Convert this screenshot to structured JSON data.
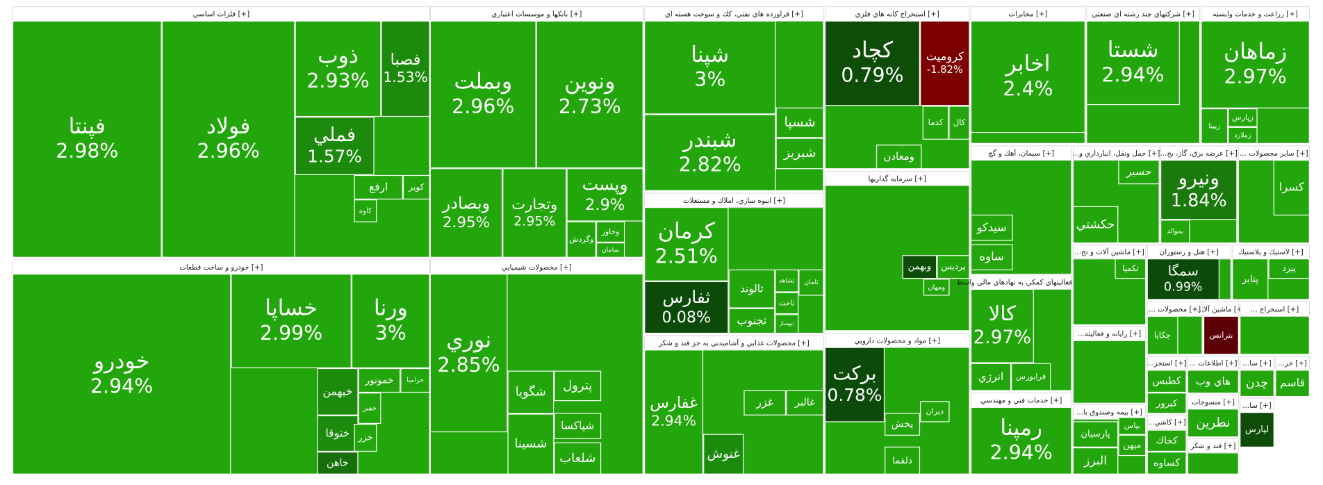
{
  "chart_data": {
    "type": "treemap",
    "default_color": "#22a60b",
    "sectors": [
      {
        "title": "فلزات اساسي [+]",
        "tiles": [
          {
            "name": "فپنتا",
            "change": "2.98%"
          },
          {
            "name": "فولاد",
            "change": "2.96%"
          },
          {
            "name": "ذوب",
            "change": "2.93%"
          },
          {
            "name": "فصبا",
            "change": "1.53%",
            "color": "#1c8a0c"
          },
          {
            "name": "فملي",
            "change": "1.57%",
            "color": "#1c8a0c"
          },
          {
            "name": "ارفع"
          },
          {
            "name": "كوير"
          },
          {
            "name": "كاوه"
          }
        ]
      },
      {
        "title": "خودرو و ساخت قطعات [+]",
        "tiles": [
          {
            "name": "خودرو",
            "change": "2.94%"
          },
          {
            "name": "خساپا",
            "change": "2.99%"
          },
          {
            "name": "ورنا",
            "change": "3%"
          },
          {
            "name": "خبهمن",
            "color": "#1c8a0c"
          },
          {
            "name": "خموتور"
          },
          {
            "name": "خزاميا"
          },
          {
            "name": "خفنر"
          },
          {
            "name": "ختوقا",
            "color": "#1c8a0c"
          },
          {
            "name": "خاهن",
            "color": "#176f0c"
          },
          {
            "name": "خزر"
          }
        ]
      },
      {
        "title": "بانكها و موسسات اعتباري [+]",
        "tiles": [
          {
            "name": "وبملت",
            "change": "2.96%"
          },
          {
            "name": "ونوين",
            "change": "2.73%"
          },
          {
            "name": "وبصادر",
            "change": "2.95%"
          },
          {
            "name": "وتجارت",
            "change": "2.95%"
          },
          {
            "name": "وپست",
            "change": "2.9%"
          },
          {
            "name": "وگردش"
          },
          {
            "name": "وخاور"
          },
          {
            "name": "سامان"
          }
        ]
      },
      {
        "title": "محصولات شيميايي [+]",
        "tiles": [
          {
            "name": "نوري",
            "change": "2.85%"
          },
          {
            "name": "شگويا"
          },
          {
            "name": "پترول"
          },
          {
            "name": "شپاكسا"
          },
          {
            "name": "شسينا"
          },
          {
            "name": "شلعاب"
          }
        ]
      },
      {
        "title": "فراورده هاي نفتي، كك و سوخت هسته اي [+]",
        "tiles": [
          {
            "name": "شپنا",
            "change": "3%"
          },
          {
            "name": "شبندر",
            "change": "2.82%"
          },
          {
            "name": "شسپا"
          },
          {
            "name": "شبريز"
          }
        ]
      },
      {
        "title": "انبوه سازي، املاك و مستغلات [+]",
        "tiles": [
          {
            "name": "كرمان",
            "change": "2.51%"
          },
          {
            "name": "ثفارس",
            "change": "0.08%",
            "color": "#0b4a08"
          },
          {
            "name": "ثالوند"
          },
          {
            "name": "ثشاهد"
          },
          {
            "name": "ثامان"
          },
          {
            "name": "ثاخت"
          },
          {
            "name": "ثجنوب"
          },
          {
            "name": "ثبهساز"
          }
        ]
      },
      {
        "title": "محصولات غذايي و آشاميدني به جز قند و شكر [+]",
        "tiles": [
          {
            "name": "غفارس",
            "change": "2.94%"
          },
          {
            "name": "غنوش",
            "color": "#1c8a0c"
          },
          {
            "name": "غزر"
          },
          {
            "name": "غالبر"
          }
        ]
      },
      {
        "title": "استخراج كانه هاي فلزي [+]",
        "tiles": [
          {
            "name": "كچاد",
            "change": "0.79%",
            "color": "#0d4d08"
          },
          {
            "name": "كروميت",
            "change": "-1.82%",
            "color": "#7c0000"
          },
          {
            "name": "كدما"
          },
          {
            "name": "كال"
          },
          {
            "name": "ومعادن"
          }
        ]
      },
      {
        "title": "سرمايه گذاريها [+]",
        "tiles": [
          {
            "name": "وبهمن",
            "color": "#0d4d08"
          },
          {
            "name": "پرديس"
          },
          {
            "name": "ومهان"
          }
        ]
      },
      {
        "title": "مواد و محصولات دارويي [+]",
        "tiles": [
          {
            "name": "بركت",
            "change": "0.78%",
            "color": "#0b4a08"
          },
          {
            "name": "پخش"
          },
          {
            "name": "ديران"
          },
          {
            "name": "دلقما"
          }
        ]
      },
      {
        "title": "مخابرات [+]",
        "tiles": [
          {
            "name": "اخابر",
            "change": "2.4%"
          }
        ]
      },
      {
        "title": "سيمان، آهك و گچ [+]",
        "tiles": [
          {
            "name": "سيدكو"
          },
          {
            "name": "ساوه"
          }
        ]
      },
      {
        "title": "فعاليتهاي كمكي به نهادهاي مالي واسط [+]",
        "tiles": [
          {
            "name": "كالا",
            "change": "2.97%"
          },
          {
            "name": "انرژي"
          },
          {
            "name": "فرابورس"
          }
        ]
      },
      {
        "title": "خدمات فني و مهندسي [+]",
        "tiles": [
          {
            "name": "رمپنا",
            "change": "2.94%"
          }
        ]
      },
      {
        "title": "شركتهاي چند رشته اي صنعتي [+]",
        "tiles": [
          {
            "name": "شستا",
            "change": "2.94%"
          }
        ]
      },
      {
        "title": "زراعت و خدمات وابسته [+]",
        "tiles": [
          {
            "name": "زماهان",
            "change": "2.97%"
          },
          {
            "name": "زپارس"
          },
          {
            "name": "زبينا"
          },
          {
            "name": "زملارد"
          }
        ]
      },
      {
        "title": "...حمل ونقل، انبارداري و [+]",
        "tiles": [
          {
            "name": "حسير"
          },
          {
            "name": "حكشتي"
          }
        ]
      },
      {
        "title": "...عرضه برق، گاز، بخ [+]",
        "tiles": [
          {
            "name": "ونيرو",
            "change": "1.84%",
            "color": "#1a7a0c"
          },
          {
            "name": "بموالد"
          }
        ]
      },
      {
        "title": "... ساير محصولات [+]",
        "tiles": [
          {
            "name": "كسرا"
          }
        ]
      },
      {
        "title": "...ماشين آلات و تج [+]",
        "tiles": [
          {
            "name": "تكمپا"
          }
        ]
      },
      {
        "title": "هتل و رستوران [+]",
        "tiles": [
          {
            "name": "سمگا",
            "change": "0.99%",
            "color": "#0b4a08"
          }
        ]
      },
      {
        "title": "لاستيك و پلاستيك [+]",
        "tiles": [
          {
            "name": "پتاير"
          },
          {
            "name": "پيزد"
          }
        ]
      },
      {
        "title": "... محصولات [+]",
        "tiles": [
          {
            "name": "چكاپا"
          }
        ]
      },
      {
        "title": "...ماشين آلا [+]",
        "tiles": [
          {
            "name": "بترانس",
            "color": "#5c0008"
          }
        ]
      },
      {
        "title": "... استخراج [+]",
        "tiles": []
      },
      {
        "title": "...رايانه و فعاليته [+]",
        "tiles": []
      },
      {
        "title": "...بيمه وصندوق با [+]",
        "tiles": [
          {
            "name": "پارسيان"
          },
          {
            "name": "البرز"
          },
          {
            "name": "بپاس"
          },
          {
            "name": "ميهن"
          }
        ]
      },
      {
        "title": "...استخر [+]",
        "tiles": [
          {
            "name": "كطبس"
          },
          {
            "name": "كپرور"
          }
        ]
      },
      {
        "title": "... اطلاعات [+]",
        "tiles": [
          {
            "name": "هاي وب"
          }
        ]
      },
      {
        "title": "منسوجات [+]",
        "tiles": [
          {
            "name": "نطرين"
          }
        ]
      },
      {
        "title": "...كاشي [+]",
        "tiles": [
          {
            "name": "كخاك"
          },
          {
            "name": "كساوه"
          }
        ]
      },
      {
        "title": "قند و شكر [+]",
        "tiles": []
      },
      {
        "title": "...سا [+]",
        "tiles": [
          {
            "name": "چدن"
          }
        ]
      },
      {
        "title": "...خر [+]",
        "tiles": [
          {
            "name": "قاسم"
          }
        ]
      },
      {
        "title": "...سا [+]",
        "tiles": [
          {
            "name": "لپارس",
            "color": "#0d4d08"
          }
        ]
      }
    ]
  }
}
